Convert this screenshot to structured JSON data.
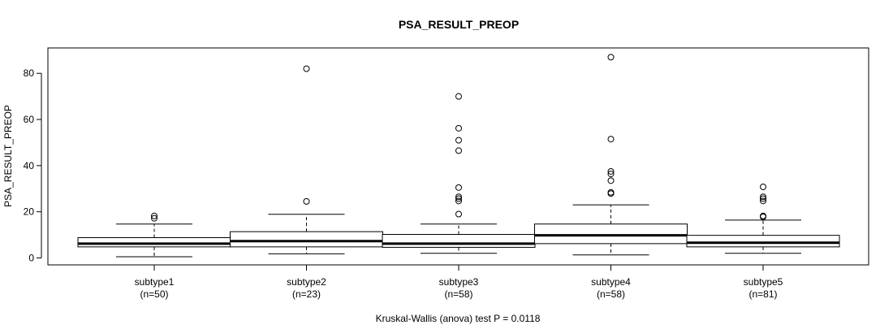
{
  "chart_data": {
    "type": "boxplot",
    "title": "PSA_RESULT_PREOP",
    "ylabel": "PSA_RESULT_PREOP",
    "xlabel": "",
    "ylim": [
      -3,
      91
    ],
    "yticks": [
      0,
      20,
      40,
      60,
      80
    ],
    "footer": "Kruskal-Wallis (anova) test P = 0.0118",
    "groups": [
      {
        "name": "subtype1",
        "n_label": "(n=50)",
        "whisker_low": 0.5,
        "q1": 4.8,
        "median": 6.2,
        "q3": 8.8,
        "whisker_high": 14.7,
        "outliers": [
          17.2,
          18.2
        ]
      },
      {
        "name": "subtype2",
        "n_label": "(n=23)",
        "whisker_low": 1.8,
        "q1": 4.8,
        "median": 7.3,
        "q3": 11.4,
        "whisker_high": 18.9,
        "outliers": [
          24.5,
          82.0
        ]
      },
      {
        "name": "subtype3",
        "n_label": "(n=58)",
        "whisker_low": 2.0,
        "q1": 4.6,
        "median": 6.2,
        "q3": 10.2,
        "whisker_high": 14.7,
        "outliers": [
          19.0,
          24.7,
          25.7,
          26.5,
          30.5,
          46.5,
          51.0,
          56.2,
          70.0
        ]
      },
      {
        "name": "subtype4",
        "n_label": "(n=58)",
        "whisker_low": 1.3,
        "q1": 6.2,
        "median": 9.8,
        "q3": 14.7,
        "whisker_high": 23.0,
        "outliers": [
          27.9,
          28.4,
          33.5,
          36.4,
          37.5,
          51.5,
          87.0
        ]
      },
      {
        "name": "subtype5",
        "n_label": "(n=81)",
        "whisker_low": 2.0,
        "q1": 4.8,
        "median": 6.6,
        "q3": 9.8,
        "whisker_high": 16.4,
        "outliers": [
          17.8,
          18.2,
          24.7,
          25.7,
          26.5,
          30.8
        ]
      }
    ]
  }
}
